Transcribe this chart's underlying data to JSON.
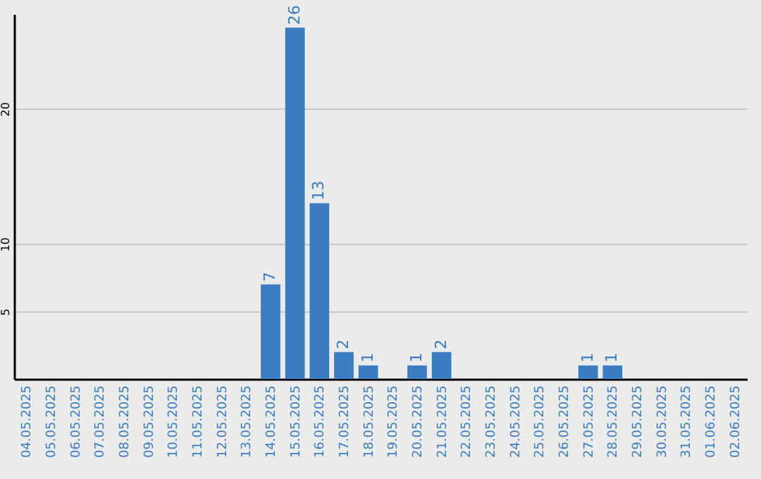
{
  "chart_data": {
    "type": "bar",
    "categories": [
      "04.05.2025",
      "05.05.2025",
      "06.05.2025",
      "07.05.2025",
      "08.05.2025",
      "09.05.2025",
      "10.05.2025",
      "11.05.2025",
      "12.05.2025",
      "13.05.2025",
      "14.05.2025",
      "15.05.2025",
      "16.05.2025",
      "17.05.2025",
      "18.05.2025",
      "19.05.2025",
      "20.05.2025",
      "21.05.2025",
      "22.05.2025",
      "23.05.2025",
      "24.05.2025",
      "25.05.2025",
      "26.05.2025",
      "27.05.2025",
      "28.05.2025",
      "29.05.2025",
      "30.05.2025",
      "31.05.2025",
      "01.06.2025",
      "02.06.2025"
    ],
    "values": [
      0,
      0,
      0,
      0,
      0,
      0,
      0,
      0,
      0,
      0,
      7,
      26,
      13,
      2,
      1,
      0,
      1,
      2,
      0,
      0,
      0,
      0,
      0,
      1,
      1,
      0,
      0,
      0,
      0,
      0
    ],
    "value_labels": [
      null,
      null,
      null,
      null,
      null,
      null,
      null,
      null,
      null,
      null,
      "7",
      "26",
      "13",
      "2",
      "1",
      null,
      "1",
      "2",
      null,
      null,
      null,
      null,
      null,
      "1",
      "1",
      null,
      null,
      null,
      null,
      null
    ],
    "color": "#3a7dc2",
    "ylim": [
      0,
      27
    ],
    "yticks": [
      5,
      10,
      20
    ],
    "grid": "y"
  }
}
